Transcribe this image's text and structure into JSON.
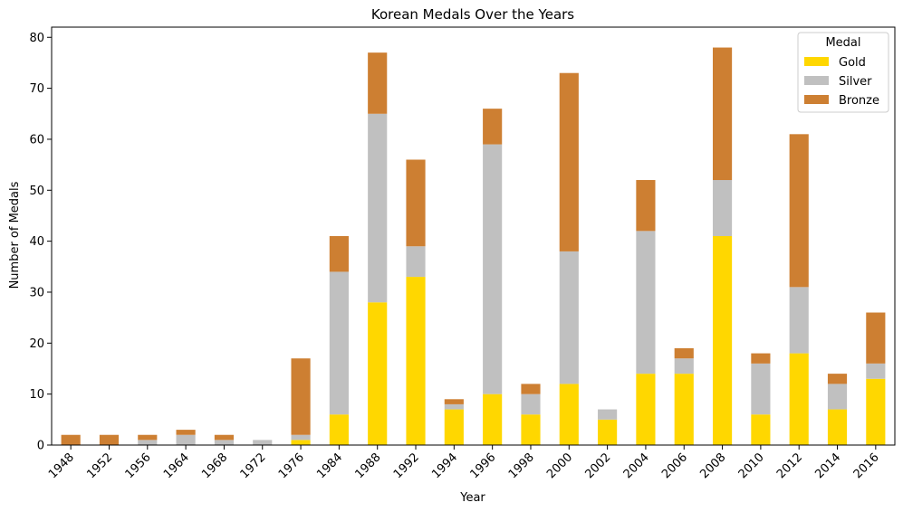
{
  "chart_data": {
    "type": "bar",
    "stacked": true,
    "title": "Korean Medals Over the Years",
    "xlabel": "Year",
    "ylabel": "Number of Medals",
    "ylim": [
      0,
      82
    ],
    "yticks": [
      0,
      10,
      20,
      30,
      40,
      50,
      60,
      70,
      80
    ],
    "grid": false,
    "legend": {
      "title": "Medal",
      "placement": "top-right"
    },
    "categories": [
      "1948",
      "1952",
      "1956",
      "1964",
      "1968",
      "1972",
      "1976",
      "1984",
      "1988",
      "1992",
      "1994",
      "1996",
      "1998",
      "2000",
      "2002",
      "2004",
      "2006",
      "2008",
      "2010",
      "2012",
      "2014",
      "2016"
    ],
    "series": [
      {
        "name": "Gold",
        "color": "#FFD700",
        "values": [
          0,
          0,
          0,
          0,
          0,
          0,
          1,
          6,
          28,
          33,
          7,
          10,
          6,
          12,
          5,
          14,
          14,
          41,
          6,
          18,
          7,
          13
        ]
      },
      {
        "name": "Silver",
        "color": "#C0C0C0",
        "values": [
          0,
          0,
          1,
          2,
          1,
          1,
          1,
          28,
          37,
          6,
          1,
          49,
          4,
          26,
          2,
          28,
          3,
          11,
          10,
          13,
          5,
          3
        ]
      },
      {
        "name": "Bronze",
        "color": "#CD7F32",
        "values": [
          2,
          2,
          1,
          1,
          1,
          0,
          15,
          7,
          12,
          17,
          1,
          7,
          2,
          35,
          0,
          10,
          2,
          26,
          2,
          30,
          2,
          10
        ]
      }
    ]
  }
}
